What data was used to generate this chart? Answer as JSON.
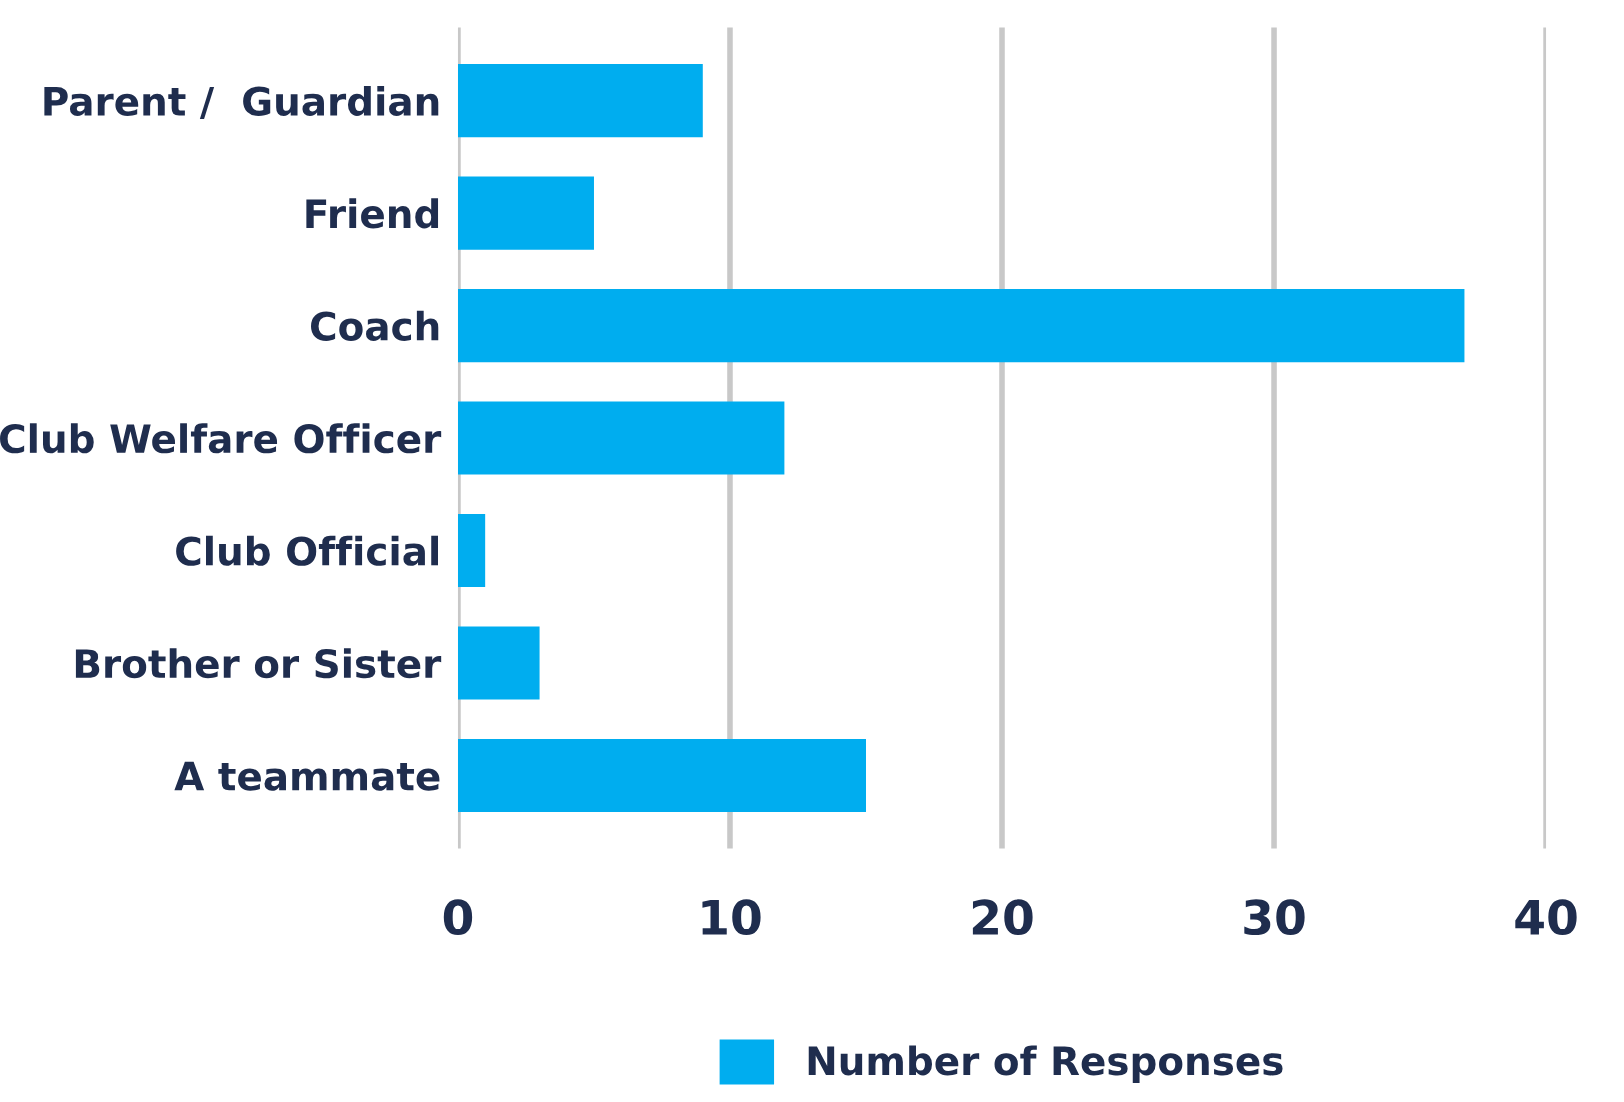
{
  "chart_data": {
    "type": "bar",
    "orientation": "horizontal",
    "categories": [
      "Parent /  Guardian",
      "Friend",
      "Coach",
      "Club Welfare Officer",
      "Club Official",
      "Brother or Sister",
      "A teammate"
    ],
    "series": [
      {
        "name": "Number of Responses",
        "color": "#00adef",
        "values": [
          9,
          5,
          37,
          12,
          1,
          3,
          15
        ]
      }
    ],
    "xlim": [
      0,
      40
    ],
    "xticks": [
      0,
      10,
      20,
      30,
      40
    ],
    "grid": "x",
    "legend": "bottom"
  }
}
